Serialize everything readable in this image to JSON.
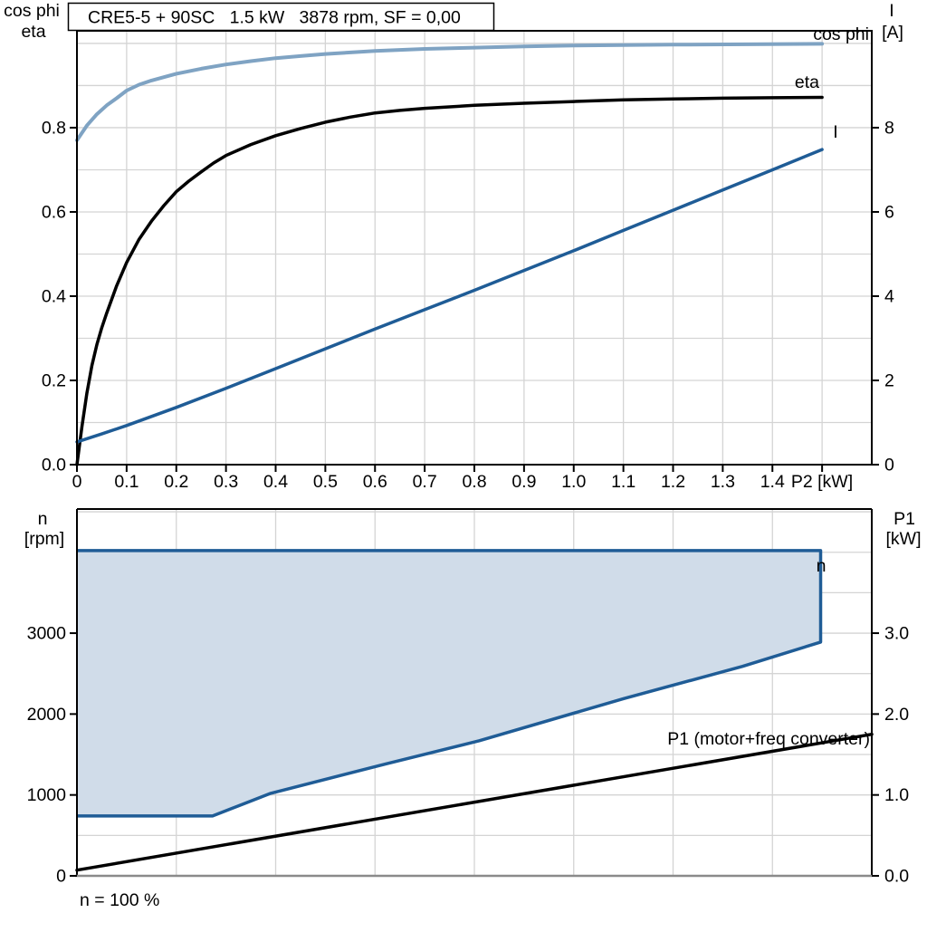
{
  "title_box": {
    "text": "CRE5-5 + 90SC   1.5 kW   3878 rpm, SF = 0,00"
  },
  "footnote": "n = 100 %",
  "colors": {
    "blue_dark": "#1f5c96",
    "blue_light": "#7fa3c3",
    "region_fill": "#d0dce9",
    "grid": "#d4d4d4",
    "frame": "#000000",
    "frame_bottom_gray": "#8a8a8a"
  },
  "chart_data": [
    {
      "id": "motor-performance",
      "type": "line",
      "x_axis": {
        "label": "P2 [kW]",
        "min": 0,
        "max": 1.6,
        "grid_step": 0.1,
        "tick_labels": [
          "0",
          "0.1",
          "0.2",
          "0.3",
          "0.4",
          "0.5",
          "0.6",
          "0.7",
          "0.8",
          "0.9",
          "1.0",
          "1.1",
          "1.2",
          "1.3",
          "1.4"
        ]
      },
      "left_axis": {
        "title_lines": [
          "cos phi",
          "eta"
        ],
        "min": 0,
        "max": 1.03,
        "grid_step": 0.1,
        "tick_values": [
          0,
          0.2,
          0.4,
          0.6,
          0.8
        ],
        "tick_labels": [
          "0.0",
          "0.2",
          "0.4",
          "0.6",
          "0.8"
        ]
      },
      "right_axis": {
        "title_lines": [
          "I",
          "[A]"
        ],
        "min": 0,
        "max": 10.3,
        "grid_step": 1,
        "tick_values": [
          0,
          2,
          4,
          6,
          8
        ],
        "tick_labels": [
          "0",
          "2",
          "4",
          "6",
          "8"
        ]
      },
      "series": [
        {
          "name": "cos phi",
          "axis": "left",
          "color": "#7fa3c3",
          "width": 4,
          "points": [
            [
              0,
              0.77
            ],
            [
              0.02,
              0.805
            ],
            [
              0.04,
              0.832
            ],
            [
              0.06,
              0.853
            ],
            [
              0.08,
              0.87
            ],
            [
              0.1,
              0.888
            ],
            [
              0.125,
              0.902
            ],
            [
              0.15,
              0.912
            ],
            [
              0.175,
              0.92
            ],
            [
              0.2,
              0.928
            ],
            [
              0.25,
              0.94
            ],
            [
              0.3,
              0.95
            ],
            [
              0.35,
              0.958
            ],
            [
              0.4,
              0.965
            ],
            [
              0.45,
              0.97
            ],
            [
              0.5,
              0.975
            ],
            [
              0.6,
              0.982
            ],
            [
              0.7,
              0.987
            ],
            [
              0.8,
              0.99
            ],
            [
              0.9,
              0.993
            ],
            [
              1.0,
              0.995
            ],
            [
              1.1,
              0.996
            ],
            [
              1.2,
              0.997
            ],
            [
              1.35,
              0.998
            ],
            [
              1.5,
              0.999
            ]
          ]
        },
        {
          "name": "eta",
          "axis": "left",
          "color": "#000000",
          "width": 3.5,
          "points": [
            [
              0,
              0.0
            ],
            [
              0.01,
              0.09
            ],
            [
              0.02,
              0.17
            ],
            [
              0.03,
              0.235
            ],
            [
              0.04,
              0.285
            ],
            [
              0.05,
              0.325
            ],
            [
              0.06,
              0.36
            ],
            [
              0.08,
              0.425
            ],
            [
              0.1,
              0.48
            ],
            [
              0.125,
              0.535
            ],
            [
              0.15,
              0.578
            ],
            [
              0.175,
              0.615
            ],
            [
              0.2,
              0.648
            ],
            [
              0.225,
              0.673
            ],
            [
              0.25,
              0.695
            ],
            [
              0.275,
              0.716
            ],
            [
              0.3,
              0.734
            ],
            [
              0.35,
              0.76
            ],
            [
              0.4,
              0.781
            ],
            [
              0.45,
              0.798
            ],
            [
              0.5,
              0.813
            ],
            [
              0.55,
              0.825
            ],
            [
              0.6,
              0.835
            ],
            [
              0.65,
              0.841
            ],
            [
              0.7,
              0.846
            ],
            [
              0.8,
              0.853
            ],
            [
              0.9,
              0.858
            ],
            [
              1.0,
              0.862
            ],
            [
              1.1,
              0.866
            ],
            [
              1.2,
              0.868
            ],
            [
              1.3,
              0.87
            ],
            [
              1.4,
              0.871
            ],
            [
              1.5,
              0.872
            ]
          ]
        },
        {
          "name": "I",
          "axis": "right",
          "color": "#1f5c96",
          "width": 3.5,
          "points": [
            [
              0,
              0.54
            ],
            [
              0.05,
              0.73
            ],
            [
              0.1,
              0.93
            ],
            [
              0.2,
              1.36
            ],
            [
              0.3,
              1.81
            ],
            [
              0.4,
              2.28
            ],
            [
              0.5,
              2.75
            ],
            [
              0.6,
              3.22
            ],
            [
              0.7,
              3.68
            ],
            [
              0.8,
              4.14
            ],
            [
              0.9,
              4.61
            ],
            [
              1.0,
              5.08
            ],
            [
              1.1,
              5.56
            ],
            [
              1.2,
              6.04
            ],
            [
              1.3,
              6.52
            ],
            [
              1.4,
              7.0
            ],
            [
              1.5,
              7.48
            ]
          ]
        }
      ]
    },
    {
      "id": "speed-and-input-power",
      "type": "area+line",
      "x_axis": {
        "label": "",
        "min": 0,
        "max": 1.6,
        "grid_step": 0.2,
        "tick_labels": []
      },
      "left_axis": {
        "title_lines": [
          "n",
          "[rpm]"
        ],
        "min": 0,
        "max": 4535,
        "grid_step": 500,
        "tick_values": [
          0,
          1000,
          2000,
          3000
        ],
        "tick_labels": [
          "0",
          "1000",
          "2000",
          "3000"
        ]
      },
      "right_axis": {
        "title_lines": [
          "P1",
          "[kW]"
        ],
        "min": 0,
        "max": 4.535,
        "grid_step": 0.5,
        "tick_values": [
          0,
          1,
          2,
          3
        ],
        "tick_labels": [
          "0.0",
          "1.0",
          "2.0",
          "3.0"
        ]
      },
      "region": {
        "name": "n",
        "fill": "#d0dce9",
        "stroke": "#1f5c96",
        "width": 3.5,
        "points": [
          [
            0,
            4020
          ],
          [
            1.497,
            4020
          ],
          [
            1.497,
            2890
          ],
          [
            1.34,
            2590
          ],
          [
            1.1,
            2190
          ],
          [
            0.81,
            1670
          ],
          [
            0.62,
            1380
          ],
          [
            0.39,
            1020
          ],
          [
            0.273,
            740
          ],
          [
            0,
            740
          ]
        ]
      },
      "series": [
        {
          "name": "P1 (motor+freq converter)",
          "axis": "right",
          "color": "#000000",
          "width": 3.5,
          "points": [
            [
              0,
              0.07
            ],
            [
              1.6,
              1.75
            ]
          ]
        }
      ]
    }
  ]
}
